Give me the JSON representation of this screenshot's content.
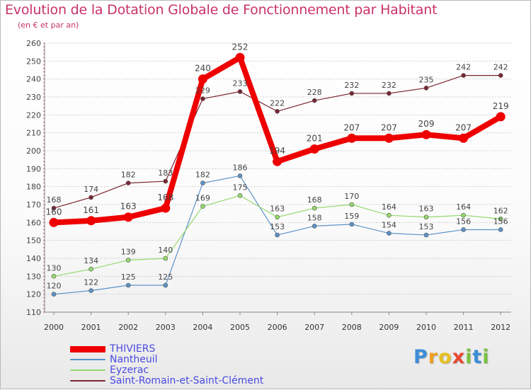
{
  "header": {
    "title": "Evolution de la Dotation Globale de Fonctionnement par Habitant",
    "subtitle": "(en € et par an)"
  },
  "chart_data": {
    "type": "line",
    "title": "Evolution de la Dotation Globale de Fonctionnement par Habitant",
    "subtitle": "(en € et par an)",
    "xlabel": "",
    "ylabel": "",
    "categories": [
      "2000",
      "2001",
      "2002",
      "2003",
      "2004",
      "2005",
      "2006",
      "2007",
      "2008",
      "2009",
      "2010",
      "2011",
      "2012"
    ],
    "ylim": [
      110,
      260
    ],
    "yticks": [
      110,
      120,
      130,
      140,
      150,
      160,
      170,
      180,
      190,
      200,
      210,
      220,
      230,
      240,
      250,
      260
    ],
    "grid": "horizontal",
    "legend_position": "bottom-left",
    "series": [
      {
        "name": "THIVIERS",
        "color": "#ee0000",
        "values": [
          160,
          161,
          163,
          168,
          240,
          252,
          194,
          201,
          207,
          207,
          209,
          207,
          219
        ]
      },
      {
        "name": "Nantheuil",
        "color": "#5b92c8",
        "values": [
          120,
          122,
          125,
          125,
          182,
          186,
          153,
          158,
          159,
          154,
          153,
          156,
          156
        ]
      },
      {
        "name": "Eyzerac",
        "color": "#94d96c",
        "values": [
          130,
          134,
          139,
          140,
          169,
          175,
          163,
          168,
          170,
          164,
          163,
          164,
          162
        ]
      },
      {
        "name": "Saint-Romain-et-Saint-Clément",
        "color": "#7a2530",
        "values": [
          168,
          174,
          182,
          183,
          229,
          233,
          222,
          228,
          232,
          232,
          235,
          242,
          242
        ]
      }
    ]
  },
  "logo": {
    "letters": [
      {
        "char": "P",
        "color": "#3b8ed8"
      },
      {
        "char": "r",
        "color": "#f0a020"
      },
      {
        "char": "o",
        "color": "#e8c020"
      },
      {
        "char": "x",
        "color": "#e84830"
      },
      {
        "char": "i",
        "color": "#7ac040"
      },
      {
        "char": "t",
        "color": "#3b8ed8"
      },
      {
        "char": "i",
        "color": "#7ac040"
      }
    ]
  }
}
